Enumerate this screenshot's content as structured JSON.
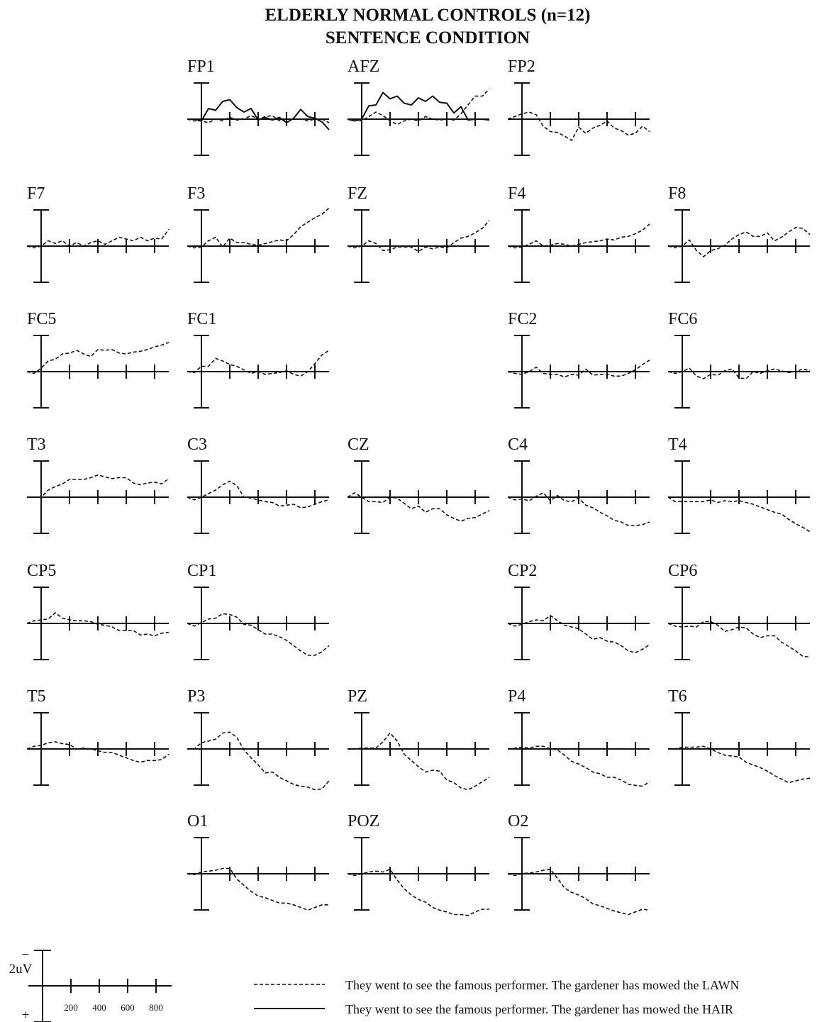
{
  "figure": {
    "title_line1": "ELDERLY NORMAL CONTROLS (n=12)",
    "title_line2": "SENTENCE CONDITION"
  },
  "scale": {
    "amplitude_label": "2uV",
    "neg_sign": "−",
    "pos_sign": "+",
    "time_ticks": [
      "200",
      "400",
      "600",
      "800"
    ]
  },
  "legend": [
    {
      "style": "dashed",
      "text": "They went to see the famous performer. The gardener has mowed the LAWN"
    },
    {
      "style": "solid",
      "text": "They went to see the famous performer. The gardener has mowed the HAIR"
    }
  ],
  "chart_data": {
    "type": "line",
    "polarity": "negative up",
    "x_unit": "ms",
    "y_unit": "uV",
    "x_range": [
      -100,
      900
    ],
    "y_range": [
      -4,
      4
    ],
    "x_ticks": [
      0,
      200,
      400,
      600,
      800
    ],
    "x": [
      -100,
      -50,
      0,
      50,
      100,
      150,
      200,
      250,
      300,
      350,
      400,
      450,
      500,
      550,
      600,
      650,
      700,
      750,
      800,
      850,
      900
    ],
    "series_names": [
      "LAWN",
      "HAIR"
    ],
    "electrodes": [
      {
        "label": "FP1",
        "dash": [
          0,
          0.2,
          0.2,
          0.4,
          0,
          0.2,
          -0.2,
          0.1,
          0,
          -0.4,
          0,
          -0.3,
          -0.4,
          0.2,
          0,
          0,
          0,
          0.2,
          0,
          0,
          0.4
        ],
        "solid": [
          0,
          0,
          0.2,
          -1.2,
          -1,
          -2,
          -2.2,
          -1.3,
          -0.8,
          -1.2,
          0.1,
          -0.2,
          0.1,
          -0.2,
          0.4,
          -0.1,
          -1.1,
          -0.3,
          -0.1,
          0.3,
          1.2
        ]
      },
      {
        "label": "AFZ",
        "dash": [
          0,
          0,
          0.2,
          -0.3,
          -0.8,
          -0.4,
          0.2,
          0.6,
          0.2,
          0,
          0.2,
          -0.3,
          0,
          0.1,
          0,
          0.1,
          -0.6,
          -1.6,
          -2.6,
          -2.6,
          -3.4
        ],
        "solid": [
          0,
          0.2,
          0,
          -1.5,
          -1.6,
          -3,
          -2.3,
          -2.6,
          -1.8,
          -1.6,
          -2.4,
          -2,
          -2.6,
          -1.9,
          -1.8,
          -0.7,
          -1.4,
          0.1,
          0,
          0,
          0.1
        ]
      },
      {
        "label": "FP2",
        "dash": [
          0,
          -0.3,
          -0.6,
          -0.8,
          -0.5,
          0.8,
          1.4,
          1.5,
          1.9,
          2.4,
          0.9,
          1.6,
          1,
          0.7,
          0.2,
          1,
          1.3,
          1.8,
          1.6,
          0.8,
          1.4
        ]
      },
      {
        "label": "F7",
        "dash": [
          0,
          0.2,
          0,
          -0.6,
          -0.3,
          -0.6,
          0,
          -0.4,
          0,
          -0.4,
          -0.6,
          -0.2,
          -0.6,
          -1,
          -0.8,
          -0.6,
          -1,
          -0.6,
          -0.9,
          -0.8,
          -1.9
        ]
      },
      {
        "label": "F3",
        "dash": [
          0,
          0.2,
          0.1,
          -0.6,
          -1,
          0.1,
          -0.9,
          -0.4,
          -0.4,
          -0.2,
          -0.1,
          -0.3,
          -0.5,
          -0.7,
          -0.6,
          -1.3,
          -2.2,
          -2.7,
          -3.2,
          -3.6,
          -4.3
        ]
      },
      {
        "label": "FZ",
        "dash": [
          0,
          0.2,
          0,
          -0.6,
          -0.3,
          0.5,
          0.4,
          0.1,
          0.1,
          0.1,
          0.6,
          0.1,
          0.3,
          0.1,
          0.2,
          -0.4,
          -0.9,
          -1.1,
          -1.5,
          -2,
          -2.9
        ]
      },
      {
        "label": "F4",
        "dash": [
          0,
          0.2,
          0.1,
          -0.2,
          -0.6,
          0,
          -0.1,
          -0.3,
          -0.2,
          0,
          -0.2,
          -0.4,
          -0.5,
          -0.6,
          -0.8,
          -0.7,
          -1,
          -1.1,
          -1.4,
          -1.8,
          -2.5
        ]
      },
      {
        "label": "F8",
        "dash": [
          0,
          0.2,
          0,
          -0.7,
          0.5,
          1.2,
          0.5,
          0.3,
          -0.1,
          -0.8,
          -1.3,
          -1.6,
          -1.1,
          -1.1,
          -1.5,
          -0.6,
          -1,
          -1.6,
          -2.1,
          -2,
          -1.3
        ]
      },
      {
        "label": "FC5",
        "dash": [
          0,
          0.2,
          -0.4,
          -1.2,
          -1.4,
          -2,
          -2.1,
          -2.4,
          -2,
          -1.7,
          -2.5,
          -2.4,
          -2.5,
          -2.1,
          -2,
          -2.2,
          -2.3,
          -2.5,
          -2.8,
          -3,
          -3.3
        ]
      },
      {
        "label": "FC1",
        "dash": [
          0,
          0.1,
          -0.6,
          -0.6,
          -1.5,
          -1.2,
          -0.8,
          -0.6,
          -0.2,
          0.2,
          0,
          0.3,
          0.2,
          0.1,
          -0.1,
          0.3,
          0.5,
          0,
          -0.9,
          -1.9,
          -2.4
        ]
      },
      {
        "label": "FC2",
        "dash": [
          0,
          0.2,
          0.3,
          0,
          -0.5,
          0.2,
          0.3,
          0.3,
          0.6,
          0.3,
          0.4,
          -0.3,
          0.4,
          0.3,
          0.3,
          0.5,
          0.5,
          0.2,
          -0.2,
          -0.8,
          -1.3
        ]
      },
      {
        "label": "FC6",
        "dash": [
          0,
          0.2,
          0,
          -0.4,
          0.5,
          0.8,
          0.3,
          0.4,
          -0.1,
          -0.3,
          0.7,
          0.8,
          0,
          0.2,
          -0.1,
          -0.3,
          -0.1,
          0.1,
          0,
          -0.3,
          -0.1
        ]
      },
      {
        "label": "T3",
        "dash": [
          0,
          0,
          0,
          -0.8,
          -1.2,
          -1.5,
          -2,
          -2,
          -2,
          -2.2,
          -2.5,
          -2.3,
          -2.1,
          -2.2,
          -2.2,
          -1.6,
          -1.4,
          -1.6,
          -1.7,
          -1.5,
          -2.1
        ]
      },
      {
        "label": "C3",
        "dash": [
          0,
          0.3,
          0,
          -0.4,
          -0.8,
          -1.4,
          -1.8,
          -1.3,
          0,
          0.1,
          0.3,
          0.5,
          0.6,
          1,
          0.9,
          0.8,
          1.2,
          1.1,
          0.8,
          0.5,
          0.3
        ]
      },
      {
        "label": "CZ",
        "dash": [
          0,
          -0.5,
          0,
          0.5,
          0.5,
          0.6,
          0,
          0.1,
          0.7,
          1.3,
          1,
          1.7,
          1.3,
          1.3,
          2,
          2.4,
          2.7,
          2.4,
          2.3,
          1.9,
          1.5
        ]
      },
      {
        "label": "C4",
        "dash": [
          0,
          0.3,
          0.2,
          0.4,
          -0.1,
          -0.5,
          0.4,
          -0.2,
          0.4,
          0.5,
          0.1,
          0.9,
          1.2,
          1.7,
          2.1,
          2.6,
          2.8,
          3.2,
          3.2,
          3.1,
          2.8
        ]
      },
      {
        "label": "T4",
        "dash": [
          0,
          0.5,
          0.5,
          0.5,
          0.5,
          0.5,
          0.3,
          0.6,
          0.4,
          0.5,
          0.4,
          0.6,
          0.8,
          1.1,
          1.4,
          1.7,
          1.9,
          2.5,
          3,
          3.4,
          3.9
        ]
      },
      {
        "label": "CP5",
        "dash": [
          0,
          -0.3,
          -0.4,
          -0.5,
          -1.2,
          -0.6,
          -0.4,
          -0.3,
          -0.3,
          -0.2,
          0.1,
          0.2,
          0.4,
          0.8,
          0.8,
          0.8,
          1.3,
          1.2,
          1.4,
          1.1,
          1
        ]
      },
      {
        "label": "CP1",
        "dash": [
          0,
          0.3,
          -0.1,
          -0.5,
          -0.6,
          -1.1,
          -1,
          -0.7,
          0.1,
          0.2,
          0.7,
          1.2,
          1.2,
          1.5,
          1.9,
          2.5,
          3.1,
          3.6,
          3.6,
          3.2,
          2.5
        ]
      },
      {
        "label": "CP2",
        "dash": [
          0,
          0.3,
          0.1,
          -0.2,
          -0.4,
          -0.3,
          -0.9,
          -0.3,
          0.2,
          0.4,
          0.6,
          1.2,
          1.8,
          1.6,
          2,
          2.1,
          2.5,
          3.1,
          3.3,
          2.9,
          2.4
        ]
      },
      {
        "label": "CP6",
        "dash": [
          0,
          0.3,
          0.4,
          0.3,
          0.4,
          -0.2,
          -0.2,
          0.2,
          0.9,
          0.7,
          0.4,
          0.5,
          1.2,
          1.6,
          1.4,
          1.4,
          2.1,
          2.6,
          3.1,
          3.7,
          3.8
        ]
      },
      {
        "label": "T5",
        "dash": [
          0,
          -0.3,
          -0.4,
          -0.7,
          -0.8,
          -0.6,
          -0.5,
          0,
          -0.1,
          0,
          0.2,
          0.4,
          0.4,
          0.7,
          1,
          1.3,
          1.5,
          1.3,
          1.3,
          1.2,
          0.6
        ]
      },
      {
        "label": "P3",
        "dash": [
          0,
          0,
          -0.7,
          -0.9,
          -1.1,
          -1.8,
          -1.9,
          -1.3,
          0.1,
          1,
          1.8,
          2.7,
          2.6,
          3.2,
          3.6,
          4,
          4.2,
          4.3,
          4.6,
          4.5,
          3.6
        ]
      },
      {
        "label": "PZ",
        "dash": [
          0,
          0,
          -0.1,
          -0.1,
          -0.1,
          -0.8,
          -1.8,
          -0.9,
          0.6,
          1.3,
          2,
          2.6,
          2.4,
          2.5,
          3.5,
          3.8,
          4.4,
          4.6,
          4.2,
          3.7,
          3.2
        ]
      },
      {
        "label": "P4",
        "dash": [
          0,
          -0.1,
          -0.2,
          -0.1,
          -0.3,
          -0.3,
          0,
          0.1,
          0.7,
          1.4,
          1.7,
          2.1,
          2.6,
          2.8,
          3.2,
          3.2,
          3.5,
          4,
          4.1,
          4.2,
          3.7
        ]
      },
      {
        "label": "T6",
        "dash": [
          0,
          0,
          -0.2,
          -0.2,
          -0.2,
          -0.3,
          0,
          0.4,
          0.7,
          0.8,
          0.9,
          1.5,
          1.8,
          2.1,
          2.5,
          3,
          3.4,
          3.8,
          3.6,
          3.4,
          3.3
        ]
      },
      {
        "label": "O1",
        "dash": [
          0,
          0.1,
          -0.2,
          -0.3,
          -0.4,
          -0.6,
          -0.6,
          0.6,
          1.3,
          2,
          2.5,
          2.7,
          3,
          3.3,
          3.3,
          3.5,
          3.8,
          4.1,
          3.8,
          3.5,
          3.5
        ]
      },
      {
        "label": "POZ",
        "dash": [
          0,
          0.2,
          0,
          -0.2,
          -0.3,
          -0.2,
          -0.5,
          0.7,
          1.7,
          2.4,
          2.9,
          3.2,
          3.8,
          4.1,
          4.3,
          4.6,
          4.6,
          4.7,
          4.3,
          4,
          4
        ]
      },
      {
        "label": "O2",
        "dash": [
          0,
          0.2,
          0,
          -0.1,
          -0.2,
          -0.4,
          -0.5,
          0.5,
          1.6,
          2.1,
          2.4,
          2.8,
          3.4,
          3.6,
          3.9,
          4.2,
          4.4,
          4.6,
          4.3,
          4,
          4.1
        ]
      }
    ]
  }
}
